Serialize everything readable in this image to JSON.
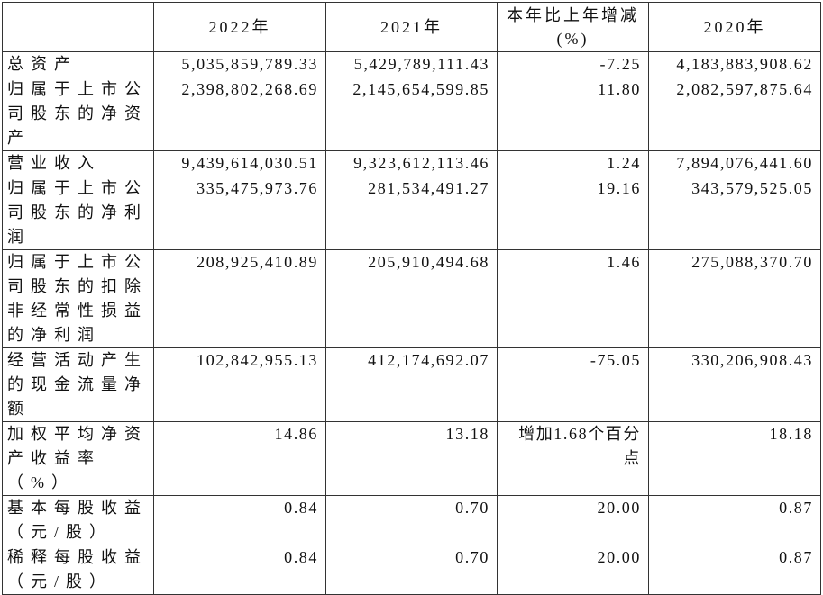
{
  "table": {
    "header": [
      "",
      "2022年",
      "2021年",
      "本年比上年增减(%)",
      "2020年"
    ],
    "rows": [
      [
        "总资产",
        "5,035,859,789.33",
        "5,429,789,111.43",
        "-7.25",
        "4,183,883,908.62"
      ],
      [
        "归属于上市公司股东的净资产",
        "2,398,802,268.69",
        "2,145,654,599.85",
        "11.80",
        "2,082,597,875.64"
      ],
      [
        "营业收入",
        "9,439,614,030.51",
        "9,323,612,113.46",
        "1.24",
        "7,894,076,441.60"
      ],
      [
        "归属于上市公司股东的净利润",
        "335,475,973.76",
        "281,534,491.27",
        "19.16",
        "343,579,525.05"
      ],
      [
        "归属于上市公司股东的扣除非经常性损益的净利润",
        "208,925,410.89",
        "205,910,494.68",
        "1.46",
        "275,088,370.70"
      ],
      [
        "经营活动产生的现金流量净额",
        "102,842,955.13",
        "412,174,692.07",
        "-75.05",
        "330,206,908.43"
      ],
      [
        "加权平均净资产收益率（%）",
        "14.86",
        "13.18",
        "增加1.68个百分点",
        "18.18"
      ],
      [
        "基本每股收益（元/股）",
        "0.84",
        "0.70",
        "20.00",
        "0.87"
      ],
      [
        "稀释每股收益（元/股）",
        "0.84",
        "0.70",
        "20.00",
        "0.87"
      ]
    ]
  }
}
